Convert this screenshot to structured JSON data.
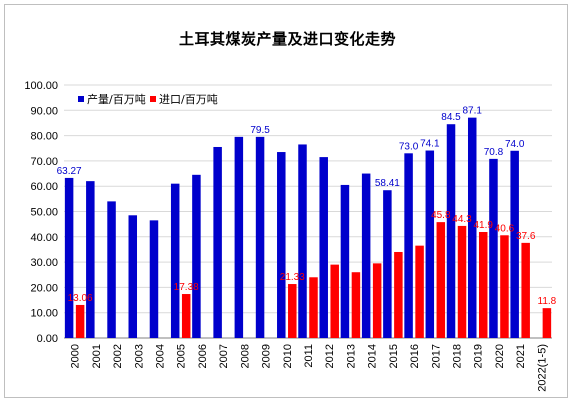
{
  "chart_data": {
    "type": "bar",
    "title": "土耳其煤炭产量及进口变化走势",
    "xlabel": "",
    "ylabel": "",
    "ylim": [
      0,
      100
    ],
    "yticks": [
      "0.00",
      "10.00",
      "20.00",
      "30.00",
      "40.00",
      "50.00",
      "60.00",
      "70.00",
      "80.00",
      "90.00",
      "100.00"
    ],
    "grid": true,
    "legend_position": "top-left",
    "categories": [
      "2000",
      "2001",
      "2002",
      "2003",
      "2004",
      "2005",
      "2006",
      "2007",
      "2008",
      "2009",
      "2010",
      "2011",
      "2012",
      "2013",
      "2014",
      "2015",
      "2016",
      "2017",
      "2018",
      "2019",
      "2020",
      "2021",
      "2022(1-5)"
    ],
    "series": [
      {
        "name": "产量/百万吨",
        "color": "#0000cc",
        "values": [
          63.27,
          62,
          54,
          48.5,
          46.5,
          61,
          64.5,
          75.5,
          79.5,
          79.5,
          73.5,
          76.5,
          71.5,
          60.5,
          65,
          58.41,
          73.0,
          74.1,
          84.5,
          87.1,
          70.8,
          74.0,
          null
        ],
        "labels": [
          "63.27",
          "",
          "",
          "",
          "",
          "",
          "",
          "",
          "",
          "79.5",
          "",
          "",
          "",
          "",
          "",
          "58.41",
          "73.0",
          "74.1",
          "84.5",
          "87.1",
          "70.8",
          "74.0",
          ""
        ]
      },
      {
        "name": "进口/百万吨",
        "color": "#ff0000",
        "values": [
          13.06,
          null,
          null,
          null,
          null,
          17.38,
          null,
          null,
          null,
          null,
          21.33,
          24,
          29,
          26,
          29.5,
          34,
          36.5,
          45.8,
          44.3,
          41.9,
          40.6,
          37.6,
          11.8
        ],
        "labels": [
          "13.06",
          "",
          "",
          "",
          "",
          "17.38",
          "",
          "",
          "",
          "",
          "21.33",
          "",
          "",
          "",
          "",
          "",
          "",
          "45.8",
          "44.3",
          "41.9",
          "40.6",
          "37.6",
          "11.8"
        ]
      }
    ]
  }
}
